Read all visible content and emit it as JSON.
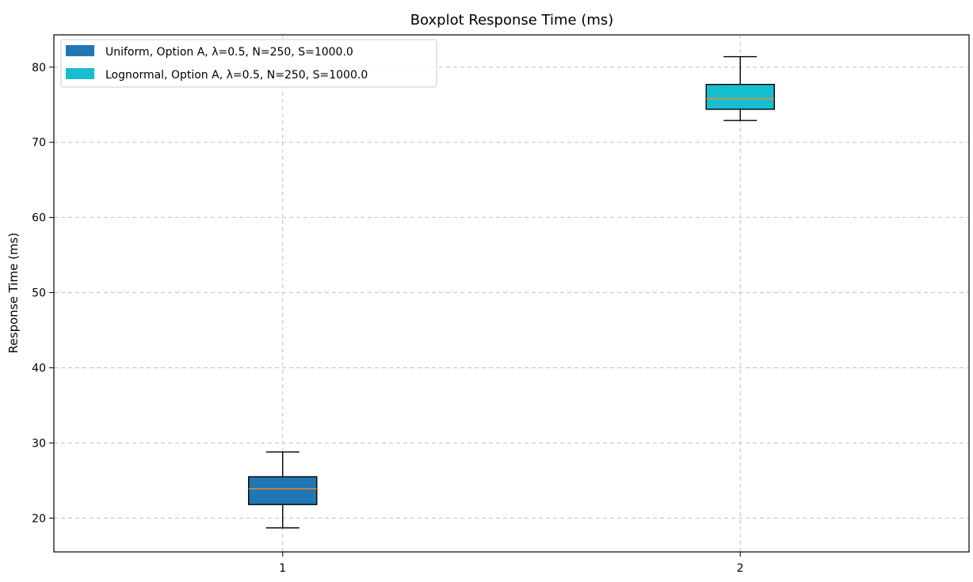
{
  "chart_data": {
    "type": "box",
    "title": "Boxplot Response Time (ms)",
    "xlabel": "",
    "ylabel": "Response Time (ms)",
    "ylim": [
      15.5,
      84.3
    ],
    "yticks": [
      20,
      30,
      40,
      50,
      60,
      70,
      80
    ],
    "xticks": [
      "1",
      "2"
    ],
    "grid": true,
    "legend_position": "top-left",
    "median_color": "#e08a2f",
    "series": [
      {
        "name": "Uniform, Option A, λ=0.5, N=250, S=1000.0",
        "position": "1",
        "color": "#1f77b4",
        "whisker_low": 18.7,
        "q1": 21.8,
        "median": 23.9,
        "q3": 25.5,
        "whisker_high": 28.8
      },
      {
        "name": "Lognormal, Option A, λ=0.5, N=250, S=1000.0",
        "position": "2",
        "color": "#17becf",
        "whisker_low": 72.9,
        "q1": 74.4,
        "median": 75.8,
        "q3": 77.7,
        "whisker_high": 81.4
      }
    ]
  }
}
